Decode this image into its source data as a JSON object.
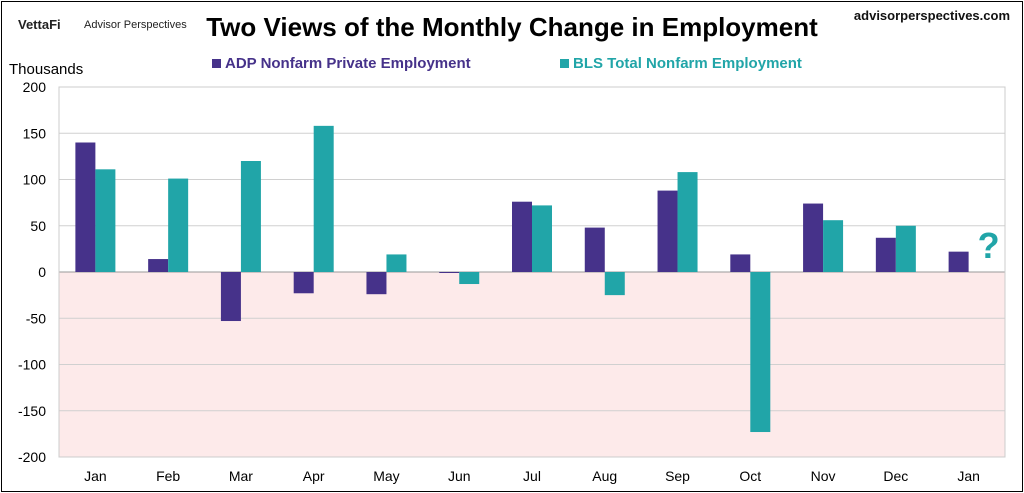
{
  "header": {
    "logo": "VettaFi",
    "logo_sub": "Advisor Perspectives",
    "site": "advisorperspectives.com"
  },
  "chart_data": {
    "type": "bar",
    "title": "Two Views of the Monthly Change in Employment",
    "ylabel": "Thousands",
    "ylim": [
      -200,
      200
    ],
    "yticks": [
      200,
      150,
      100,
      50,
      0,
      -50,
      -100,
      -150,
      -200
    ],
    "grid": true,
    "legend": "top",
    "negative_region_color": "#fdeaea",
    "categories": [
      "Jan",
      "Feb",
      "Mar",
      "Apr",
      "May",
      "Jun",
      "Jul",
      "Aug",
      "Sep",
      "Oct",
      "Nov",
      "Dec",
      "Jan"
    ],
    "series": [
      {
        "name": "ADP Nonfarm Private Employment",
        "color": "#46328a",
        "values": [
          140,
          14,
          -53,
          -23,
          -24,
          -1,
          76,
          48,
          88,
          19,
          74,
          37,
          22
        ]
      },
      {
        "name": "BLS Total Nonfarm Employment",
        "color": "#21a5a8",
        "values": [
          111,
          101,
          120,
          158,
          19,
          -13,
          72,
          -25,
          108,
          -173,
          56,
          50,
          null
        ]
      }
    ],
    "annotation": "?"
  }
}
